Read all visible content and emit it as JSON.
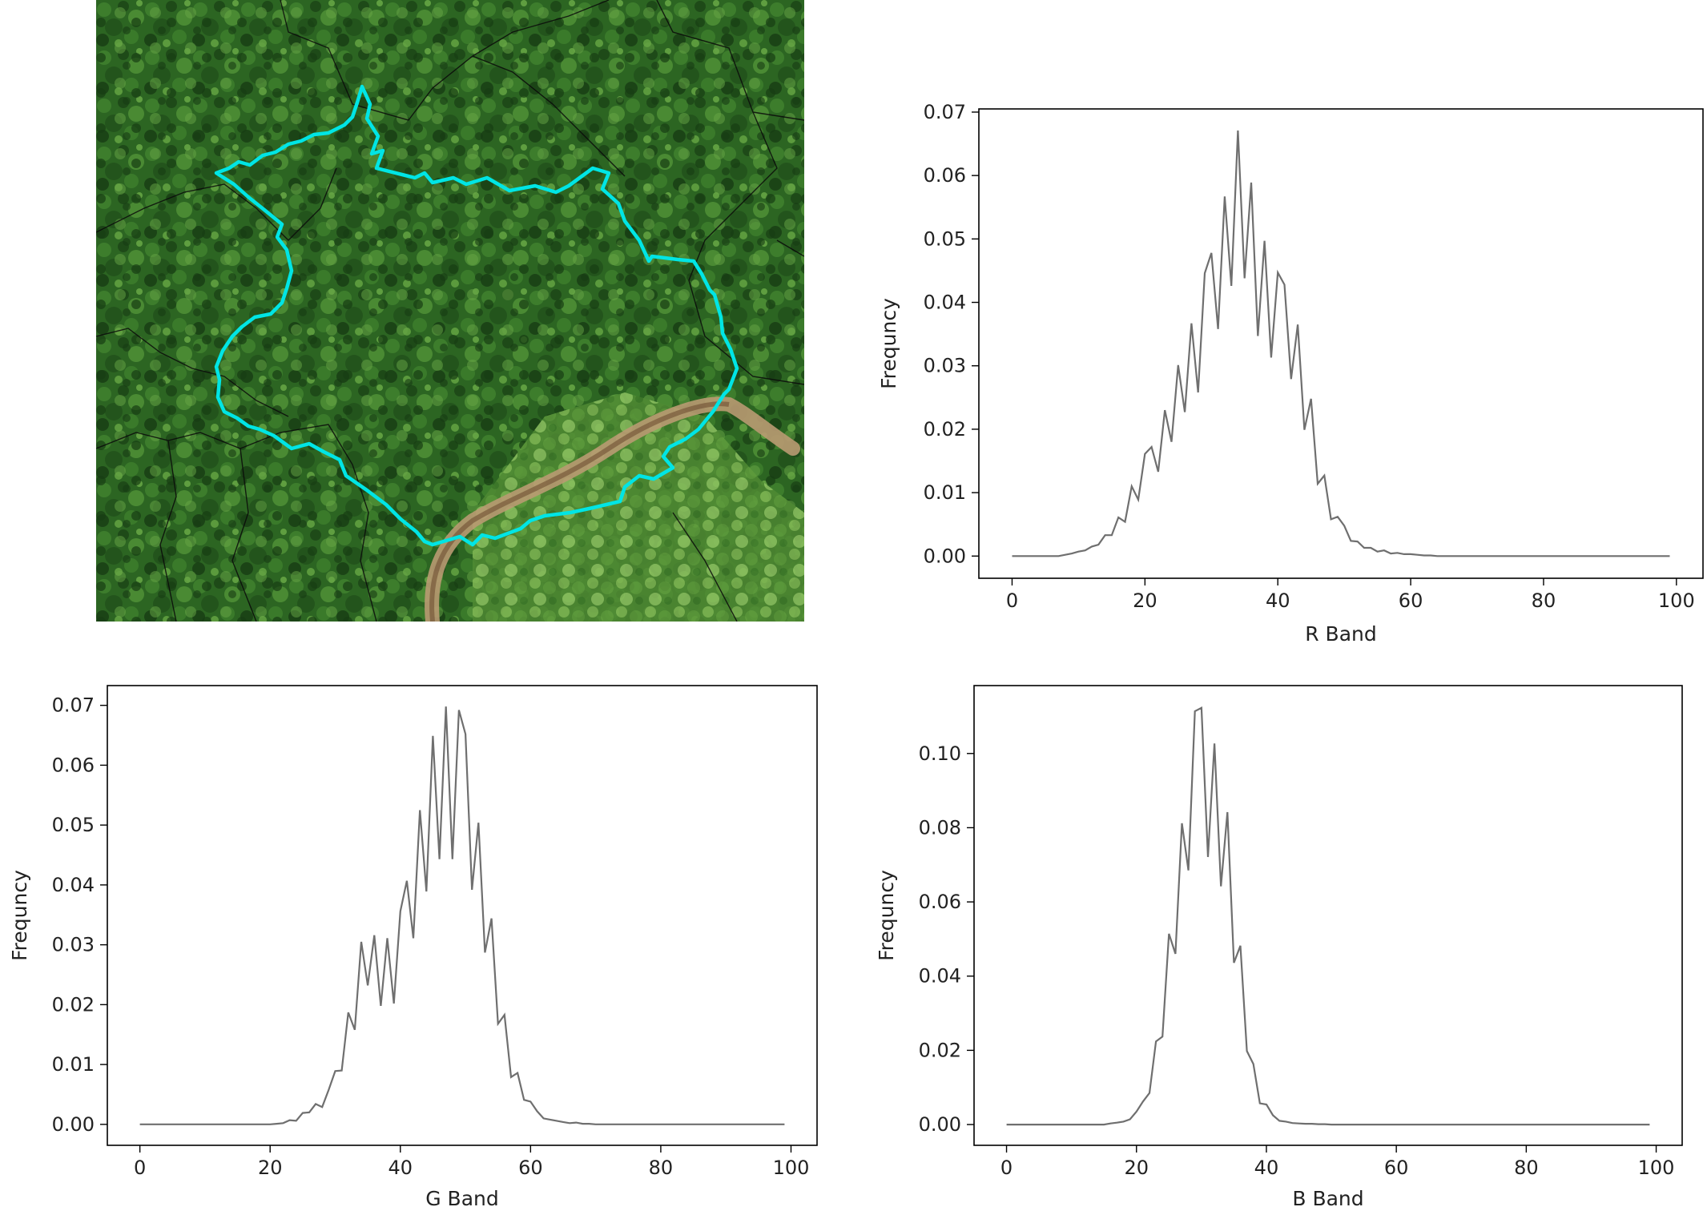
{
  "image": {
    "kind": "aerial-photo",
    "subject": "forest canopy with highlighted crown boundary",
    "colors": {
      "canopy_dark": "#1f4a1a",
      "canopy_mid": "#2f6b24",
      "canopy_light": "#5c9a3c",
      "path": "#b99a72",
      "outline": "#00e5e5"
    }
  },
  "chart_data": [
    {
      "type": "line",
      "xlabel": "R Band",
      "ylabel": "Frequncy",
      "xlim": [
        -5,
        104
      ],
      "ylim": [
        -0.0035,
        0.0705
      ],
      "xticks": [
        0,
        20,
        40,
        60,
        80,
        100
      ],
      "yticks": [
        0.0,
        0.01,
        0.02,
        0.03,
        0.04,
        0.05,
        0.06,
        0.07
      ],
      "ytick_format": 2,
      "line_color": "#6f6f6f",
      "grid": false,
      "series": [
        {
          "x": [
            0,
            1,
            2,
            3,
            4,
            5,
            6,
            7,
            8,
            9,
            10,
            11,
            12,
            13,
            14,
            15,
            16,
            17,
            18,
            19,
            20,
            21,
            22,
            23,
            24,
            25,
            26,
            27,
            28,
            29,
            30,
            31,
            32,
            33,
            34,
            35,
            36,
            37,
            38,
            39,
            40,
            41,
            42,
            43,
            44,
            45,
            46,
            47,
            48,
            49,
            50,
            51,
            52,
            53,
            54,
            55,
            56,
            57,
            58,
            59,
            60,
            61,
            62,
            63,
            64,
            65,
            66,
            67,
            68,
            69,
            70,
            71,
            72,
            73,
            74,
            75,
            76,
            77,
            78,
            79,
            80,
            81,
            82,
            83,
            84,
            85,
            86,
            87,
            88,
            89,
            90,
            91,
            92,
            93,
            94,
            95,
            96,
            97,
            98,
            99
          ],
          "y": [
            0,
            0,
            0,
            0,
            0,
            0,
            0,
            0,
            0.0002,
            0.0004,
            0.0007,
            0.0009,
            0.0015,
            0.0018,
            0.0033,
            0.0033,
            0.0061,
            0.0054,
            0.011,
            0.0089,
            0.0161,
            0.0172,
            0.0133,
            0.023,
            0.018,
            0.0301,
            0.0227,
            0.0367,
            0.0258,
            0.0446,
            0.0478,
            0.0358,
            0.0567,
            0.0426,
            0.0671,
            0.0438,
            0.0589,
            0.0347,
            0.0497,
            0.0313,
            0.0447,
            0.0428,
            0.0279,
            0.0365,
            0.0199,
            0.0248,
            0.0114,
            0.0127,
            0.0058,
            0.0062,
            0.0048,
            0.0024,
            0.0023,
            0.0013,
            0.0013,
            0.0007,
            0.0009,
            0.0004,
            0.0005,
            0.0003,
            0.0003,
            0.0002,
            0.0001,
            0.0001,
            0,
            0,
            0,
            0,
            0,
            0,
            0,
            0,
            0,
            0,
            0,
            0,
            0,
            0,
            0,
            0,
            0,
            0,
            0,
            0,
            0,
            0,
            0,
            0,
            0,
            0,
            0,
            0,
            0,
            0,
            0,
            0,
            0,
            0,
            0,
            0
          ]
        }
      ]
    },
    {
      "type": "line",
      "xlabel": "G Band",
      "ylabel": "Frequncy",
      "xlim": [
        -5,
        104
      ],
      "ylim": [
        -0.0035,
        0.0733
      ],
      "xticks": [
        0,
        20,
        40,
        60,
        80,
        100
      ],
      "yticks": [
        0.0,
        0.01,
        0.02,
        0.03,
        0.04,
        0.05,
        0.06,
        0.07
      ],
      "ytick_format": 2,
      "line_color": "#6f6f6f",
      "grid": false,
      "series": [
        {
          "x": [
            0,
            1,
            2,
            3,
            4,
            5,
            6,
            7,
            8,
            9,
            10,
            11,
            12,
            13,
            14,
            15,
            16,
            17,
            18,
            19,
            20,
            21,
            22,
            23,
            24,
            25,
            26,
            27,
            28,
            29,
            30,
            31,
            32,
            33,
            34,
            35,
            36,
            37,
            38,
            39,
            40,
            41,
            42,
            43,
            44,
            45,
            46,
            47,
            48,
            49,
            50,
            51,
            52,
            53,
            54,
            55,
            56,
            57,
            58,
            59,
            60,
            61,
            62,
            63,
            64,
            65,
            66,
            67,
            68,
            69,
            70,
            71,
            72,
            73,
            74,
            75,
            76,
            77,
            78,
            79,
            80,
            81,
            82,
            83,
            84,
            85,
            86,
            87,
            88,
            89,
            90,
            91,
            92,
            93,
            94,
            95,
            96,
            97,
            98,
            99
          ],
          "y": [
            0,
            0,
            0,
            0,
            0,
            0,
            0,
            0,
            0,
            0,
            0,
            0,
            0,
            0,
            0,
            0,
            0,
            0,
            0,
            0,
            0,
            0.0001,
            0.0002,
            0.0007,
            0.0006,
            0.0019,
            0.002,
            0.0034,
            0.0029,
            0.0058,
            0.0089,
            0.009,
            0.0187,
            0.0158,
            0.0305,
            0.0232,
            0.0316,
            0.0198,
            0.0311,
            0.0202,
            0.0356,
            0.0407,
            0.0311,
            0.0525,
            0.0389,
            0.0649,
            0.0443,
            0.0698,
            0.0443,
            0.0692,
            0.0652,
            0.0392,
            0.0504,
            0.0287,
            0.0344,
            0.0168,
            0.0183,
            0.0079,
            0.0086,
            0.0041,
            0.0038,
            0.0022,
            0.001,
            0.0008,
            0.0006,
            0.0004,
            0.0002,
            0.0003,
            0.0001,
            0.0001,
            0,
            0,
            0,
            0,
            0,
            0,
            0,
            0,
            0,
            0,
            0,
            0,
            0,
            0,
            0,
            0,
            0,
            0,
            0,
            0,
            0,
            0,
            0,
            0,
            0,
            0,
            0,
            0,
            0,
            0
          ]
        }
      ]
    },
    {
      "type": "line",
      "xlabel": "B Band",
      "ylabel": "Frequncy",
      "xlim": [
        -5,
        104
      ],
      "ylim": [
        -0.0056,
        0.1183
      ],
      "xticks": [
        0,
        20,
        40,
        60,
        80,
        100
      ],
      "yticks": [
        0.0,
        0.02,
        0.04,
        0.06,
        0.08,
        0.1
      ],
      "ytick_format": 2,
      "line_color": "#6f6f6f",
      "grid": false,
      "series": [
        {
          "x": [
            0,
            1,
            2,
            3,
            4,
            5,
            6,
            7,
            8,
            9,
            10,
            11,
            12,
            13,
            14,
            15,
            16,
            17,
            18,
            19,
            20,
            21,
            22,
            23,
            24,
            25,
            26,
            27,
            28,
            29,
            30,
            31,
            32,
            33,
            34,
            35,
            36,
            37,
            38,
            39,
            40,
            41,
            42,
            43,
            44,
            45,
            46,
            47,
            48,
            49,
            50,
            51,
            52,
            53,
            54,
            55,
            56,
            57,
            58,
            59,
            60,
            61,
            62,
            63,
            64,
            65,
            66,
            67,
            68,
            69,
            70,
            71,
            72,
            73,
            74,
            75,
            76,
            77,
            78,
            79,
            80,
            81,
            82,
            83,
            84,
            85,
            86,
            87,
            88,
            89,
            90,
            91,
            92,
            93,
            94,
            95,
            96,
            97,
            98,
            99
          ],
          "y": [
            0,
            0,
            0,
            0,
            0,
            0,
            0,
            0,
            0,
            0,
            0,
            0,
            0,
            0,
            0,
            0,
            0.0003,
            0.0005,
            0.0008,
            0.0014,
            0.0035,
            0.0062,
            0.0085,
            0.0224,
            0.0237,
            0.0514,
            0.046,
            0.0812,
            0.0685,
            0.1114,
            0.1123,
            0.0721,
            0.1027,
            0.0642,
            0.0842,
            0.0436,
            0.0482,
            0.0198,
            0.0163,
            0.0057,
            0.0054,
            0.0025,
            0.001,
            0.0008,
            0.0004,
            0.0003,
            0.0002,
            0.0002,
            0.0001,
            0.0001,
            0,
            0,
            0,
            0,
            0,
            0,
            0,
            0,
            0,
            0,
            0,
            0,
            0,
            0,
            0,
            0,
            0,
            0,
            0,
            0,
            0,
            0,
            0,
            0,
            0,
            0,
            0,
            0,
            0,
            0,
            0,
            0,
            0,
            0,
            0,
            0,
            0,
            0,
            0,
            0,
            0,
            0,
            0,
            0,
            0,
            0,
            0,
            0,
            0,
            0
          ]
        }
      ]
    }
  ]
}
